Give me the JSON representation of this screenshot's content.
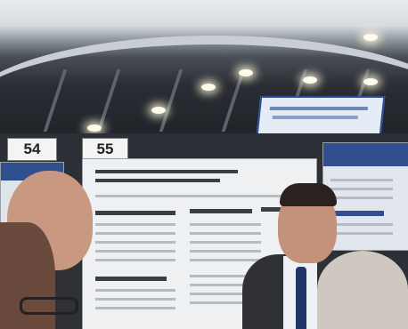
{
  "booths": {
    "left_number": "54",
    "right_number": "55"
  },
  "colors": {
    "ceiling": "#d7dbe0",
    "poster": "#eef0f2",
    "banner_border": "#2b4f9a",
    "suit": "#2f3136",
    "tie": "#1f3566"
  }
}
